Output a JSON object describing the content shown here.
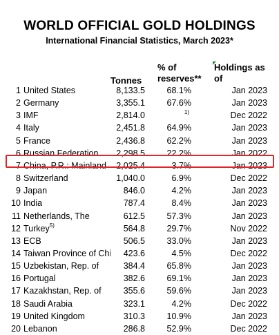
{
  "title": "WORLD OFFICIAL GOLD HOLDINGS",
  "subtitle": "International Financial Statistics, March 2023*",
  "headers": {
    "tonnes": "Tonnes",
    "pct_line1": "% of",
    "pct_line2": "reserves**",
    "holdings_line1": "Holdings as",
    "holdings_line2": "of"
  },
  "highlight_color": "#e0262b",
  "rows": [
    {
      "rank": "1",
      "country": "United States",
      "tonnes": "8,133.5",
      "pct": "68.1%",
      "date": "Jan 2023"
    },
    {
      "rank": "2",
      "country": "Germany",
      "tonnes": "3,355.1",
      "pct": "67.6%",
      "date": "Jan 2023"
    },
    {
      "rank": "3",
      "country": "IMF",
      "tonnes": "2,814.0",
      "pct": "",
      "note": "1)",
      "date": "Dec 2022"
    },
    {
      "rank": "4",
      "country": "Italy",
      "tonnes": "2,451.8",
      "pct": "64.9%",
      "date": "Jan 2023"
    },
    {
      "rank": "5",
      "country": "France",
      "tonnes": "2,436.8",
      "pct": "62.2%",
      "date": "Jan 2023"
    },
    {
      "rank": "6",
      "country": "Russian Federation",
      "tonnes": "2,298.5",
      "pct": "22.2%",
      "date": "Jan 2022"
    },
    {
      "rank": "7",
      "country": "China, P.R.: Mainland",
      "tonnes": "2,025.4",
      "pct": "3.7%",
      "date": "Jan 2023"
    },
    {
      "rank": "8",
      "country": "Switzerland",
      "tonnes": "1,040.0",
      "pct": "6.9%",
      "date": "Dec 2022"
    },
    {
      "rank": "9",
      "country": "Japan",
      "tonnes": "846.0",
      "pct": "4.2%",
      "date": "Jan 2023"
    },
    {
      "rank": "10",
      "country": "India",
      "tonnes": "787.4",
      "pct": "8.4%",
      "date": "Jan 2023"
    },
    {
      "rank": "11",
      "country": "Netherlands, The",
      "tonnes": "612.5",
      "pct": "57.3%",
      "date": "Jan 2023"
    },
    {
      "rank": "12",
      "country": "Turkey",
      "country_sup": "5)",
      "tonnes": "564.8",
      "pct": "29.7%",
      "date": "Nov 2022"
    },
    {
      "rank": "13",
      "country": "ECB",
      "tonnes": "506.5",
      "pct": "33.0%",
      "date": "Jan 2023"
    },
    {
      "rank": "14",
      "country": "Taiwan Province of China",
      "tonnes": "423.6",
      "pct": "4.5%",
      "date": "Dec 2022"
    },
    {
      "rank": "15",
      "country": "Uzbekistan, Rep. of",
      "tonnes": "384.4",
      "pct": "65.8%",
      "date": "Jan 2023"
    },
    {
      "rank": "16",
      "country": "Portugal",
      "tonnes": "382.6",
      "pct": "69.1%",
      "date": "Jan 2023"
    },
    {
      "rank": "17",
      "country": "Kazakhstan, Rep. of",
      "tonnes": "355.6",
      "pct": "59.6%",
      "date": "Jan 2023"
    },
    {
      "rank": "18",
      "country": "Saudi Arabia",
      "tonnes": "323.1",
      "pct": "4.2%",
      "date": "Dec 2022"
    },
    {
      "rank": "19",
      "country": "United Kingdom",
      "tonnes": "310.3",
      "pct": "10.9%",
      "date": "Jan 2023"
    },
    {
      "rank": "20",
      "country": "Lebanon",
      "tonnes": "286.8",
      "pct": "52.9%",
      "date": "Dec 2022"
    }
  ]
}
